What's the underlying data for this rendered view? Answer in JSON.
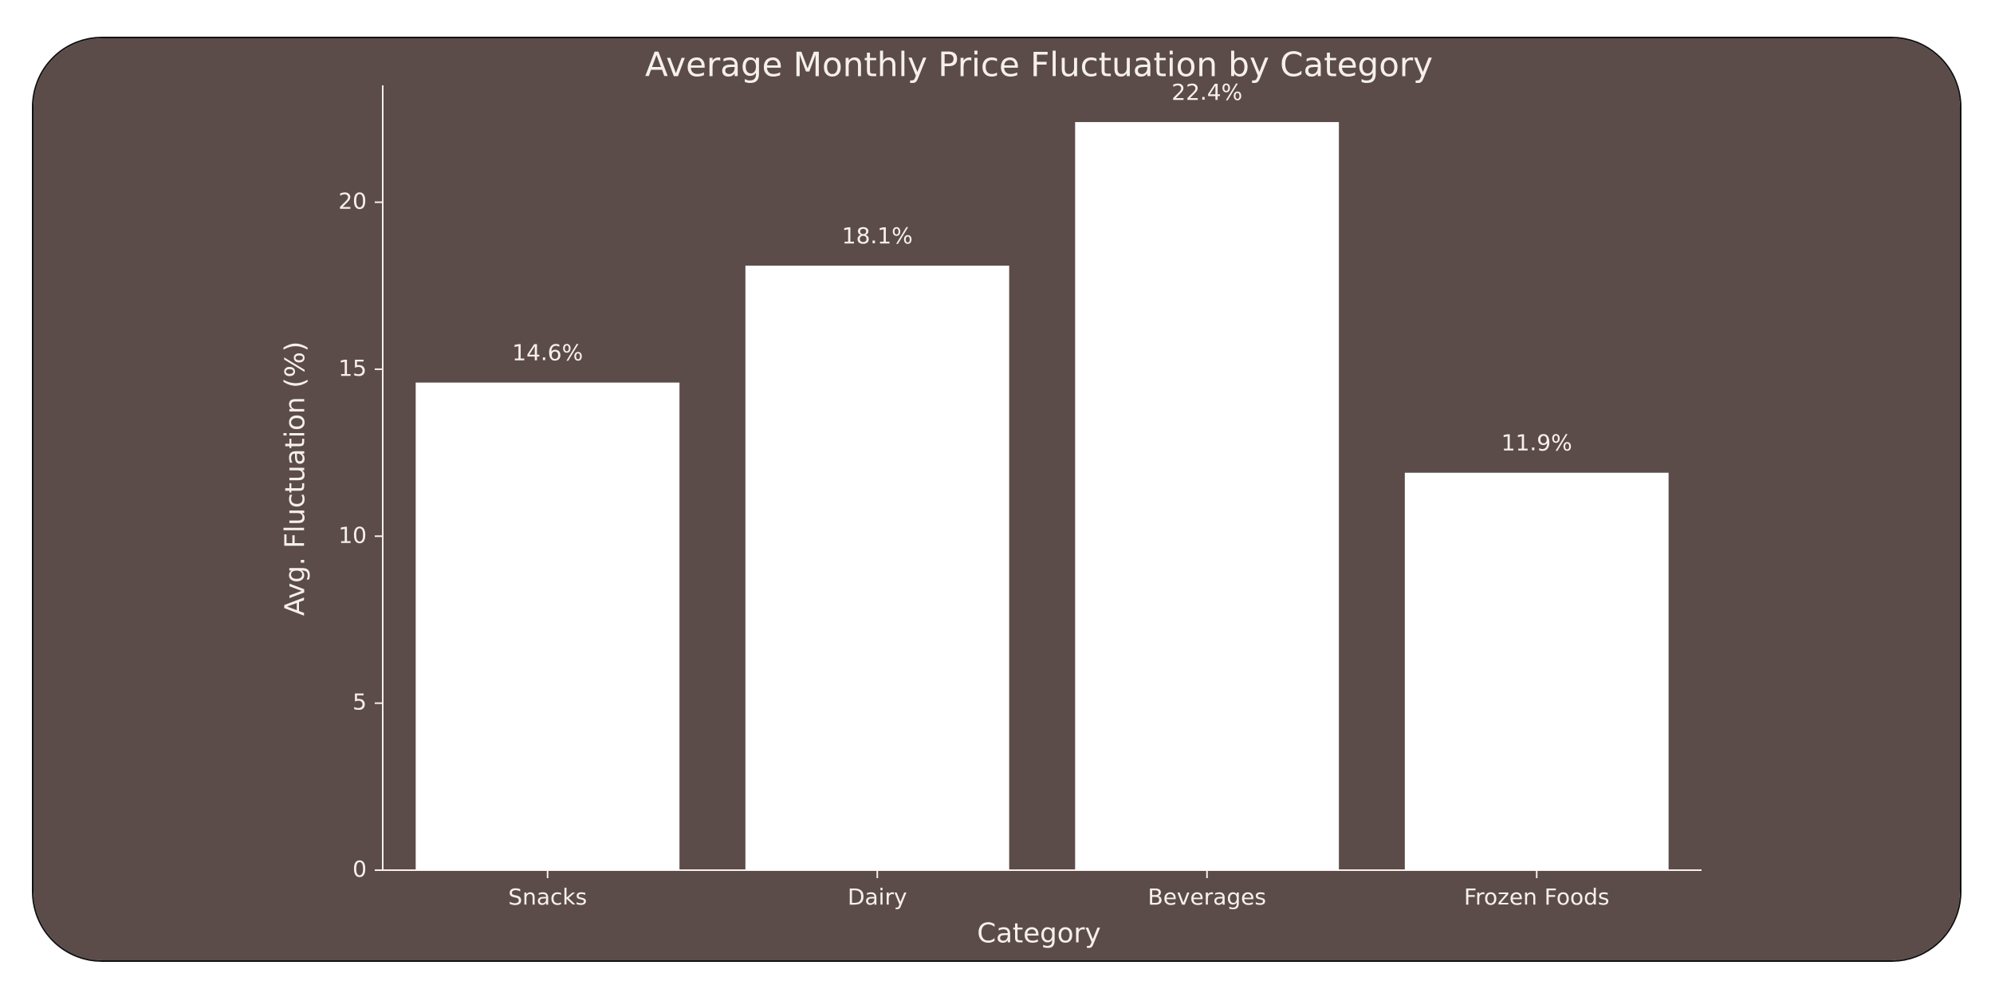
{
  "colors": {
    "panel_background": "#5b4c4a",
    "bar_fill": "#ffffff",
    "text": "#f7f0ea",
    "axis": "#f7f0ea"
  },
  "chart_data": {
    "type": "bar",
    "title": "Average Monthly Price Fluctuation by Category",
    "xlabel": "Category",
    "ylabel": "Avg. Fluctuation (%)",
    "categories": [
      "Snacks",
      "Dairy",
      "Beverages",
      "Frozen Foods"
    ],
    "values": [
      14.6,
      18.1,
      22.4,
      11.9
    ],
    "value_labels": [
      "14.6%",
      "18.1%",
      "22.4%",
      "11.9%"
    ],
    "yticks": [
      0,
      5,
      10,
      15,
      20
    ],
    "ylim": [
      0,
      23.5
    ],
    "grid": false,
    "legend": "none"
  }
}
